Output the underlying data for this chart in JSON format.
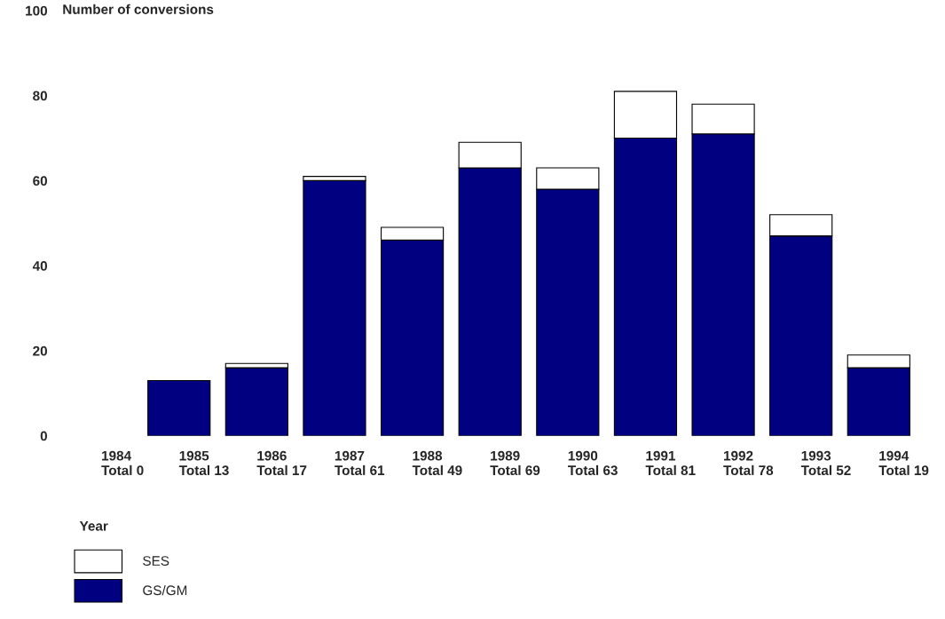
{
  "chart_data": {
    "type": "bar",
    "stacked": true,
    "ylabel": "Number of conversions",
    "xlabel": "Year",
    "categories": [
      "1984",
      "1985",
      "1986",
      "1987",
      "1988",
      "1989",
      "1990",
      "1991",
      "1992",
      "1993",
      "1994"
    ],
    "series": [
      {
        "name": "GS/GM",
        "color": "#000080",
        "values": [
          0,
          13,
          16,
          60,
          46,
          63,
          58,
          70,
          71,
          47,
          16
        ]
      },
      {
        "name": "SES",
        "color": "#ffffff",
        "values": [
          0,
          0,
          1,
          1,
          3,
          6,
          5,
          11,
          7,
          5,
          3
        ]
      }
    ],
    "totals": [
      "Total 0",
      "Total 13",
      "Total 17",
      "Total 61",
      "Total 49",
      "Total 69",
      "Total 63",
      "Total 81",
      "Total 78",
      "Total 52",
      "Total 19"
    ],
    "ylim": [
      0,
      100
    ],
    "yticks": [
      0,
      20,
      40,
      60,
      80,
      100
    ],
    "grid": false,
    "legend": "bottom left"
  }
}
